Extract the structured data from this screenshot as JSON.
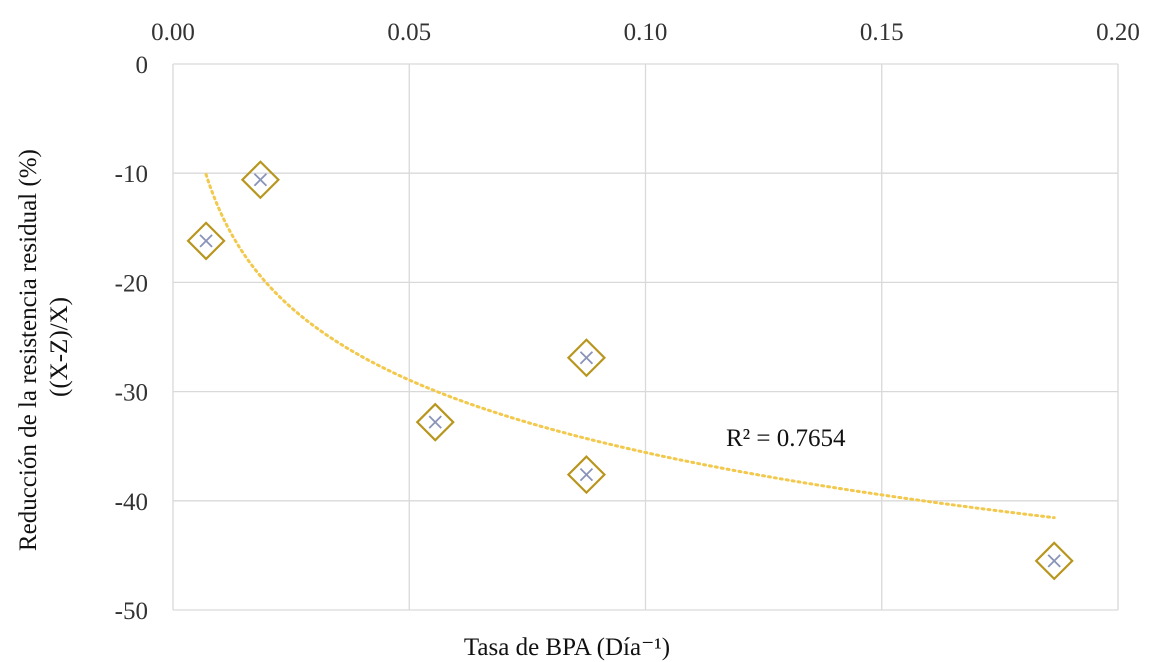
{
  "chart_data": {
    "type": "scatter",
    "title": "",
    "xlabel": "Tasa de BPA (Día⁻¹)",
    "ylabel": [
      "Reducción de la resistencia residual (%)",
      "((X-Z)/X)"
    ],
    "xlim": [
      0,
      0.2
    ],
    "ylim": [
      -50,
      0
    ],
    "x_ticks": [
      "0.00",
      "0.05",
      "0.10",
      "0.15",
      "0.20"
    ],
    "y_ticks": [
      "0",
      "-10",
      "-20",
      "-30",
      "-40",
      "-50"
    ],
    "x_axis_position": "top",
    "grid": true,
    "legend": "none",
    "points": [
      {
        "x": 0.007,
        "y": -16.2
      },
      {
        "x": 0.0185,
        "y": -10.6
      },
      {
        "x": 0.0555,
        "y": -32.8
      },
      {
        "x": 0.0875,
        "y": -26.9
      },
      {
        "x": 0.0875,
        "y": -37.6
      },
      {
        "x": 0.1865,
        "y": -45.5
      }
    ],
    "trendline": {
      "type": "logarithmic",
      "x_range": [
        0.007,
        0.1865
      ],
      "r_squared_label": "R² = 0.7654"
    },
    "colors": {
      "marker_diamond": "#b8961e",
      "marker_cross": "#8a93b8",
      "trendline": "#f2c94c",
      "grid": "#d9d9d9"
    }
  }
}
